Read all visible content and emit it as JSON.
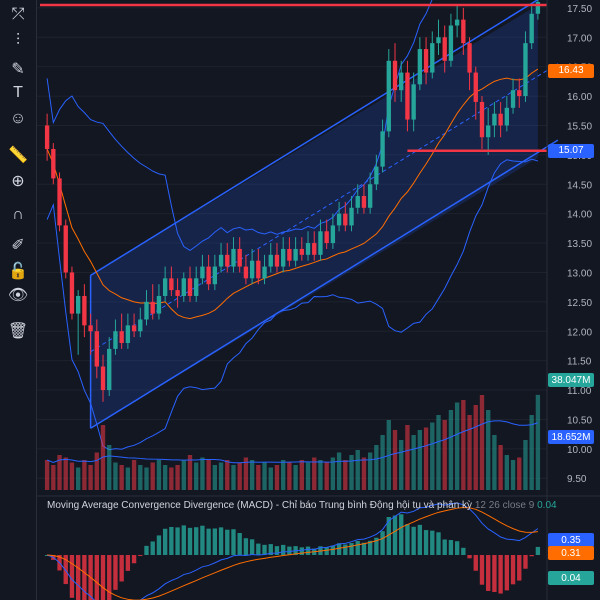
{
  "toolbar": {
    "tools": [
      {
        "name": "trendline-tool-icon",
        "glyph": "⤱"
      },
      {
        "name": "parallel-channel-tool-icon",
        "glyph": "⫶"
      },
      {
        "name": "brush-tool-icon",
        "glyph": "✎"
      },
      {
        "name": "text-tool-icon",
        "glyph": "T"
      },
      {
        "name": "emoji-tool-icon",
        "glyph": "☺"
      },
      {
        "name": "ruler-tool-icon",
        "glyph": "📏"
      },
      {
        "name": "zoom-in-icon",
        "glyph": "⊕"
      },
      {
        "name": "magnet-icon",
        "glyph": "∩"
      },
      {
        "name": "lock-drawings-icon",
        "glyph": "✐"
      },
      {
        "name": "unlock-icon",
        "glyph": "🔓"
      },
      {
        "name": "eye-icon",
        "glyph": "👁"
      },
      {
        "name": "trash-icon",
        "glyph": "🗑"
      }
    ]
  },
  "chart_data": {
    "type": "candlestick",
    "price_axis": {
      "ticks": [
        "17.50",
        "17.00",
        "16.50",
        "16.00",
        "15.50",
        "15.00",
        "14.50",
        "14.00",
        "13.50",
        "13.00",
        "12.50",
        "12.00",
        "11.50",
        "11.00",
        "10.50",
        "10.00",
        "9.50"
      ],
      "range": [
        9.3,
        17.6
      ]
    },
    "badges": {
      "price_high": {
        "value": "16.43",
        "color": "#ff6d00"
      },
      "support_line": {
        "value": "15.07",
        "color": "#2962ff"
      },
      "volume": {
        "value": "38.047M",
        "color": "#26a69a"
      },
      "volume_ma": {
        "value": "18.652M",
        "color": "#2962ff"
      },
      "macd": {
        "value": "0.35",
        "color": "#2962ff"
      },
      "signal": {
        "value": "0.31",
        "color": "#ff6d00"
      },
      "histogram": {
        "value": "0.04",
        "color": "#26a69a"
      }
    },
    "horizontal_lines": [
      {
        "price": 17.55,
        "color": "#f23645"
      },
      {
        "price": 15.07,
        "color": "#f23645"
      }
    ],
    "channel": {
      "start_index": 7,
      "end_index": 79,
      "upper_start": 12.95,
      "upper_end": 17.55,
      "lower_start": 10.35,
      "lower_end": 14.95,
      "color": "#2962ff"
    },
    "candles": [
      [
        15.5,
        15.1,
        15.7,
        14.9
      ],
      [
        15.1,
        14.6,
        15.2,
        14.5
      ],
      [
        14.6,
        13.8,
        14.7,
        13.7
      ],
      [
        13.8,
        13.0,
        13.9,
        12.9
      ],
      [
        13.0,
        12.3,
        13.1,
        12.2
      ],
      [
        12.3,
        12.6,
        12.7,
        11.6
      ],
      [
        12.6,
        12.1,
        12.8,
        11.9
      ],
      [
        12.1,
        12.0,
        12.3,
        11.6
      ],
      [
        12.0,
        11.4,
        12.2,
        11.2
      ],
      [
        11.4,
        11.0,
        11.6,
        10.8
      ],
      [
        11.0,
        11.7,
        11.9,
        10.9
      ],
      [
        11.7,
        12.0,
        12.2,
        11.6
      ],
      [
        12.0,
        11.8,
        12.3,
        11.7
      ],
      [
        11.8,
        12.1,
        12.3,
        11.7
      ],
      [
        12.1,
        12.0,
        12.3,
        11.9
      ],
      [
        12.0,
        12.2,
        12.4,
        11.9
      ],
      [
        12.2,
        12.5,
        12.7,
        12.1
      ],
      [
        12.5,
        12.3,
        12.8,
        12.2
      ],
      [
        12.3,
        12.6,
        12.8,
        12.2
      ],
      [
        12.6,
        12.9,
        13.1,
        12.5
      ],
      [
        12.9,
        12.7,
        13.1,
        12.6
      ],
      [
        12.7,
        12.6,
        12.9,
        12.4
      ],
      [
        12.6,
        12.9,
        13.0,
        12.5
      ],
      [
        12.9,
        12.6,
        13.1,
        12.5
      ],
      [
        12.6,
        12.9,
        13.1,
        12.5
      ],
      [
        12.9,
        13.1,
        13.3,
        12.8
      ],
      [
        13.1,
        12.8,
        13.3,
        12.7
      ],
      [
        12.8,
        13.1,
        13.3,
        12.7
      ],
      [
        13.1,
        13.3,
        13.5,
        13.0
      ],
      [
        13.3,
        13.1,
        13.5,
        13.0
      ],
      [
        13.1,
        13.4,
        13.6,
        13.0
      ],
      [
        13.4,
        13.1,
        13.6,
        13.0
      ],
      [
        13.1,
        12.9,
        13.3,
        12.8
      ],
      [
        12.9,
        13.2,
        13.4,
        12.8
      ],
      [
        13.2,
        12.9,
        13.4,
        12.8
      ],
      [
        12.9,
        13.1,
        13.3,
        12.8
      ],
      [
        13.1,
        13.3,
        13.5,
        13.0
      ],
      [
        13.3,
        13.1,
        13.5,
        13.0
      ],
      [
        13.1,
        13.4,
        13.6,
        13.0
      ],
      [
        13.4,
        13.2,
        13.6,
        13.1
      ],
      [
        13.2,
        13.4,
        13.6,
        13.1
      ],
      [
        13.4,
        13.3,
        13.6,
        13.2
      ],
      [
        13.3,
        13.5,
        13.7,
        13.2
      ],
      [
        13.5,
        13.3,
        13.7,
        13.2
      ],
      [
        13.3,
        13.7,
        13.9,
        13.2
      ],
      [
        13.7,
        13.5,
        13.9,
        13.4
      ],
      [
        13.5,
        13.8,
        14.0,
        13.4
      ],
      [
        13.8,
        14.0,
        14.2,
        13.7
      ],
      [
        14.0,
        13.8,
        14.2,
        13.7
      ],
      [
        13.8,
        14.1,
        14.3,
        13.7
      ],
      [
        14.1,
        14.3,
        14.5,
        14.0
      ],
      [
        14.3,
        14.1,
        14.5,
        14.0
      ],
      [
        14.1,
        14.5,
        14.7,
        14.0
      ],
      [
        14.5,
        14.8,
        15.0,
        14.4
      ],
      [
        14.8,
        15.4,
        15.6,
        14.7
      ],
      [
        15.4,
        16.6,
        16.8,
        15.3
      ],
      [
        16.6,
        16.1,
        16.9,
        15.9
      ],
      [
        16.1,
        16.4,
        16.6,
        15.9
      ],
      [
        16.4,
        15.6,
        16.6,
        15.4
      ],
      [
        15.6,
        16.2,
        16.4,
        15.4
      ],
      [
        16.2,
        16.8,
        17.0,
        16.1
      ],
      [
        16.8,
        16.4,
        17.0,
        16.2
      ],
      [
        16.4,
        16.9,
        17.1,
        16.3
      ],
      [
        16.9,
        17.0,
        17.3,
        16.7
      ],
      [
        17.0,
        16.6,
        17.2,
        16.4
      ],
      [
        16.6,
        17.2,
        17.4,
        16.5
      ],
      [
        17.2,
        17.3,
        17.55,
        17.0
      ],
      [
        17.3,
        16.9,
        17.5,
        16.7
      ],
      [
        16.9,
        16.4,
        17.0,
        16.1
      ],
      [
        16.4,
        15.9,
        16.5,
        15.6
      ],
      [
        15.9,
        15.3,
        16.0,
        15.1
      ],
      [
        15.3,
        15.5,
        15.8,
        15.0
      ],
      [
        15.5,
        15.7,
        15.9,
        15.3
      ],
      [
        15.7,
        15.5,
        15.9,
        15.3
      ],
      [
        15.5,
        15.8,
        16.0,
        15.4
      ],
      [
        15.8,
        16.1,
        16.3,
        15.7
      ],
      [
        16.1,
        16.0,
        16.3,
        15.8
      ],
      [
        16.0,
        16.9,
        17.1,
        15.9
      ],
      [
        16.9,
        17.4,
        17.55,
        16.8
      ],
      [
        17.4,
        17.6,
        17.7,
        17.3
      ]
    ],
    "volume_range_max": 60,
    "volume": [
      12,
      10,
      14,
      13,
      11,
      9,
      12,
      10,
      15,
      26,
      18,
      11,
      10,
      9,
      12,
      10,
      9,
      11,
      12,
      10,
      9,
      10,
      12,
      14,
      11,
      13,
      12,
      10,
      11,
      12,
      10,
      11,
      13,
      12,
      10,
      11,
      9,
      10,
      12,
      11,
      10,
      12,
      11,
      13,
      12,
      11,
      13,
      15,
      12,
      14,
      16,
      13,
      15,
      18,
      22,
      28,
      24,
      20,
      26,
      22,
      24,
      25,
      27,
      30,
      28,
      32,
      35,
      36,
      30,
      34,
      38,
      32,
      22,
      18,
      14,
      12,
      13,
      20,
      30,
      38.047
    ],
    "macd_range": [
      -0.45,
      0.45
    ]
  },
  "macd_panel": {
    "name": "Moving Average Convergence Divergence (MACD) - Chỉ báo Trung bình Động hội tụ và phân kỳ",
    "params": "12 26 close 9",
    "hist_value": "0.04"
  }
}
